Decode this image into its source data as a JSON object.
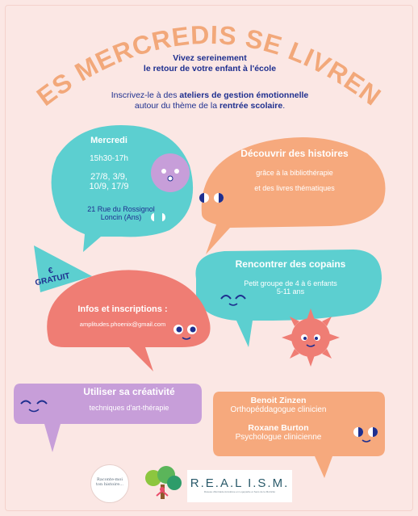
{
  "title": "LES MERCREDIS SE LIVRENT",
  "intro": {
    "line1": "Vivez sereinement",
    "line2": "le retour de votre enfant à l'école",
    "line3_pre": "Inscrivez-le à des",
    "line3_bold": "ateliers de gestion émotionnelle",
    "line4_pre": "autour du thème de la",
    "line4_bold": "rentrée scolaire",
    "line4_post": "."
  },
  "schedule": {
    "day": "Mercredi",
    "time": "15h30-17h",
    "dates1": "27/8, 3/9,",
    "dates2": "10/9, 17/9",
    "address": "21 Rue du Rossignol",
    "city": "Loncin (Ans)"
  },
  "stories": {
    "heading": "Découvrir des histoires",
    "line1": "grâce à la bibliothérapie",
    "line2": "et des livres thématiques"
  },
  "friends": {
    "heading": "Rencontrer des copains",
    "line1": "Petit groupe de 4 à 6 enfants",
    "line2": "5-11 ans"
  },
  "badge": {
    "symbol": "€",
    "label": "GRATUIT"
  },
  "info": {
    "heading": "Infos et inscriptions :",
    "email": "amplitudes.phoenix@gmail.com"
  },
  "creativity": {
    "heading": "Utiliser sa créativité",
    "line1": "techniques d'art-thérapie"
  },
  "team": {
    "name1": "Benoit Zinzen",
    "role1": "Orthopéddagogue clinicien",
    "name2": "Roxane Burton",
    "role2": "Psychologue clinicienne"
  },
  "logos": {
    "logo1": "Raconte-moi ton histoire...",
    "logo3": "R.E.A.L I.S.M.",
    "logo3_sub": "Réseau d'Entraide Accélérée en Logopédie et Sens de la Motricité"
  },
  "colors": {
    "background": "#fbe7e4",
    "teal": "#5ccfd0",
    "peach": "#f6a97d",
    "coral": "#ef7d74",
    "lilac": "#c79ed9",
    "navy": "#1e2f8f",
    "title": "#f2a87a"
  }
}
